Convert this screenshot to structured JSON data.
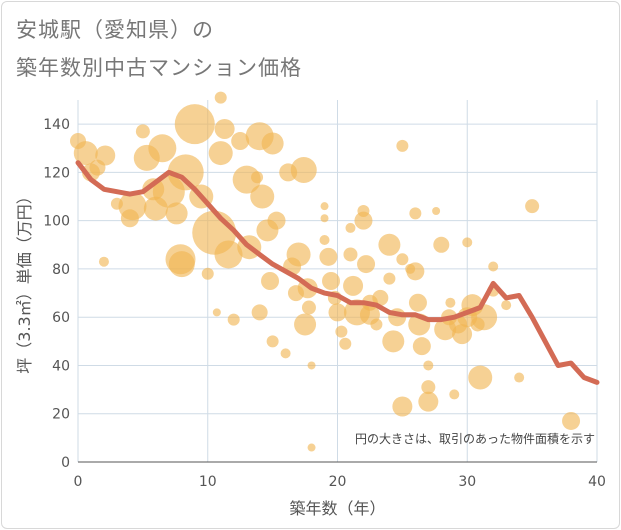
{
  "title_line1": "安城駅（愛知県）の",
  "title_line2": "築年数別中古マンション価格",
  "chart_data": {
    "type": "scatter",
    "xlabel": "築年数（年）",
    "ylabel": "坪（3.3㎡）単価（万円）",
    "xlim": [
      0,
      40
    ],
    "ylim": [
      0,
      150
    ],
    "xticks": [
      0,
      10,
      20,
      30,
      40
    ],
    "yticks": [
      0,
      20,
      40,
      60,
      80,
      100,
      120,
      140
    ],
    "grid": true,
    "annotation": "円の大きさは、取引のあった物件面積を示す",
    "colors": {
      "bubble": "#f0b552",
      "line": "#d36b55",
      "grid": "#cfdbe6"
    },
    "bubbles": [
      {
        "x": 0,
        "y": 133,
        "s": 8
      },
      {
        "x": 0.6,
        "y": 128,
        "s": 12
      },
      {
        "x": 1,
        "y": 120,
        "s": 9
      },
      {
        "x": 1.5,
        "y": 122,
        "s": 8
      },
      {
        "x": 2,
        "y": 83,
        "s": 5
      },
      {
        "x": 2.1,
        "y": 127,
        "s": 10
      },
      {
        "x": 3,
        "y": 107,
        "s": 6
      },
      {
        "x": 4,
        "y": 101,
        "s": 9
      },
      {
        "x": 4.2,
        "y": 106,
        "s": 14
      },
      {
        "x": 5,
        "y": 137,
        "s": 7
      },
      {
        "x": 5.3,
        "y": 126,
        "s": 13
      },
      {
        "x": 5.8,
        "y": 113,
        "s": 11
      },
      {
        "x": 6,
        "y": 105,
        "s": 12
      },
      {
        "x": 6.5,
        "y": 130,
        "s": 14
      },
      {
        "x": 7,
        "y": 112,
        "s": 16
      },
      {
        "x": 7.6,
        "y": 103,
        "s": 11
      },
      {
        "x": 7.9,
        "y": 84,
        "s": 15
      },
      {
        "x": 8,
        "y": 82,
        "s": 13
      },
      {
        "x": 8.3,
        "y": 120,
        "s": 18
      },
      {
        "x": 9,
        "y": 140,
        "s": 20
      },
      {
        "x": 9.5,
        "y": 110,
        "s": 12
      },
      {
        "x": 10,
        "y": 78,
        "s": 6
      },
      {
        "x": 10.5,
        "y": 95,
        "s": 22
      },
      {
        "x": 10.7,
        "y": 62,
        "s": 4
      },
      {
        "x": 11,
        "y": 151,
        "s": 6
      },
      {
        "x": 11,
        "y": 128,
        "s": 12
      },
      {
        "x": 11.3,
        "y": 138,
        "s": 10
      },
      {
        "x": 11.6,
        "y": 86,
        "s": 14
      },
      {
        "x": 12,
        "y": 59,
        "s": 6
      },
      {
        "x": 12.5,
        "y": 133,
        "s": 9
      },
      {
        "x": 13,
        "y": 117,
        "s": 14
      },
      {
        "x": 13.2,
        "y": 89,
        "s": 12
      },
      {
        "x": 13.8,
        "y": 118,
        "s": 6
      },
      {
        "x": 14,
        "y": 135,
        "s": 14
      },
      {
        "x": 14.2,
        "y": 110,
        "s": 12
      },
      {
        "x": 14.6,
        "y": 96,
        "s": 11
      },
      {
        "x": 14.8,
        "y": 75,
        "s": 9
      },
      {
        "x": 14,
        "y": 62,
        "s": 8
      },
      {
        "x": 15,
        "y": 50,
        "s": 6
      },
      {
        "x": 15,
        "y": 132,
        "s": 11
      },
      {
        "x": 15.3,
        "y": 100,
        "s": 9
      },
      {
        "x": 16,
        "y": 45,
        "s": 5
      },
      {
        "x": 16.2,
        "y": 120,
        "s": 9
      },
      {
        "x": 16.5,
        "y": 81,
        "s": 9
      },
      {
        "x": 16.8,
        "y": 70,
        "s": 8
      },
      {
        "x": 17,
        "y": 86,
        "s": 12
      },
      {
        "x": 17.4,
        "y": 121,
        "s": 13
      },
      {
        "x": 17.5,
        "y": 57,
        "s": 11
      },
      {
        "x": 17.7,
        "y": 72,
        "s": 10
      },
      {
        "x": 17.8,
        "y": 64,
        "s": 7
      },
      {
        "x": 18,
        "y": 40,
        "s": 4
      },
      {
        "x": 18,
        "y": 6,
        "s": 4
      },
      {
        "x": 19,
        "y": 106,
        "s": 4
      },
      {
        "x": 19,
        "y": 101,
        "s": 4
      },
      {
        "x": 19,
        "y": 92,
        "s": 5
      },
      {
        "x": 19.3,
        "y": 85,
        "s": 9
      },
      {
        "x": 19.5,
        "y": 75,
        "s": 9
      },
      {
        "x": 19.8,
        "y": 68,
        "s": 7
      },
      {
        "x": 20,
        "y": 62,
        "s": 9
      },
      {
        "x": 20.3,
        "y": 54,
        "s": 6
      },
      {
        "x": 20.6,
        "y": 49,
        "s": 6
      },
      {
        "x": 21,
        "y": 97,
        "s": 5
      },
      {
        "x": 21,
        "y": 86,
        "s": 7
      },
      {
        "x": 21.2,
        "y": 73,
        "s": 10
      },
      {
        "x": 21.5,
        "y": 62,
        "s": 13
      },
      {
        "x": 22,
        "y": 104,
        "s": 6
      },
      {
        "x": 22,
        "y": 100,
        "s": 9
      },
      {
        "x": 22.2,
        "y": 82,
        "s": 9
      },
      {
        "x": 22.5,
        "y": 66,
        "s": 8
      },
      {
        "x": 22.5,
        "y": 61,
        "s": 10
      },
      {
        "x": 23,
        "y": 57,
        "s": 6
      },
      {
        "x": 23.3,
        "y": 68,
        "s": 8
      },
      {
        "x": 24,
        "y": 90,
        "s": 11
      },
      {
        "x": 24,
        "y": 76,
        "s": 6
      },
      {
        "x": 24.3,
        "y": 50,
        "s": 11
      },
      {
        "x": 24.6,
        "y": 60,
        "s": 9
      },
      {
        "x": 25,
        "y": 131,
        "s": 6
      },
      {
        "x": 25,
        "y": 84,
        "s": 6
      },
      {
        "x": 25,
        "y": 23,
        "s": 10
      },
      {
        "x": 25.6,
        "y": 80,
        "s": 5
      },
      {
        "x": 26,
        "y": 103,
        "s": 6
      },
      {
        "x": 26,
        "y": 79,
        "s": 9
      },
      {
        "x": 26.2,
        "y": 66,
        "s": 9
      },
      {
        "x": 26.3,
        "y": 57,
        "s": 11
      },
      {
        "x": 26.5,
        "y": 48,
        "s": 9
      },
      {
        "x": 27,
        "y": 40,
        "s": 5
      },
      {
        "x": 27,
        "y": 31,
        "s": 7
      },
      {
        "x": 27,
        "y": 25,
        "s": 10
      },
      {
        "x": 27.6,
        "y": 104,
        "s": 4
      },
      {
        "x": 28,
        "y": 90,
        "s": 8
      },
      {
        "x": 28.3,
        "y": 55,
        "s": 11
      },
      {
        "x": 28.6,
        "y": 60,
        "s": 8
      },
      {
        "x": 28.7,
        "y": 66,
        "s": 5
      },
      {
        "x": 29,
        "y": 28,
        "s": 5
      },
      {
        "x": 29.3,
        "y": 57,
        "s": 9
      },
      {
        "x": 29.6,
        "y": 53,
        "s": 10
      },
      {
        "x": 30,
        "y": 91,
        "s": 5
      },
      {
        "x": 30,
        "y": 60,
        "s": 10
      },
      {
        "x": 30.4,
        "y": 65,
        "s": 11
      },
      {
        "x": 30.8,
        "y": 57,
        "s": 7
      },
      {
        "x": 31,
        "y": 35,
        "s": 12
      },
      {
        "x": 31.3,
        "y": 60,
        "s": 13
      },
      {
        "x": 32,
        "y": 81,
        "s": 5
      },
      {
        "x": 32,
        "y": 71,
        "s": 6
      },
      {
        "x": 33,
        "y": 65,
        "s": 5
      },
      {
        "x": 34,
        "y": 35,
        "s": 5
      },
      {
        "x": 35,
        "y": 106,
        "s": 7
      },
      {
        "x": 38,
        "y": 17,
        "s": 9
      }
    ],
    "trend": {
      "x": [
        0,
        1,
        2,
        3,
        4,
        5,
        6,
        7,
        8,
        9,
        10,
        11,
        12,
        13,
        14,
        15,
        16,
        17,
        18,
        19,
        20,
        21,
        22,
        23,
        24,
        25,
        26,
        27,
        28,
        29,
        30,
        31,
        32,
        33,
        34,
        35,
        36,
        37,
        38,
        39,
        40
      ],
      "y": [
        124,
        117,
        113,
        112,
        111,
        112,
        116,
        120,
        118,
        113,
        107,
        101,
        96,
        90,
        86,
        82,
        79,
        76,
        72,
        70,
        69,
        66,
        66,
        65,
        62,
        61,
        61,
        59,
        59,
        60,
        62,
        64,
        74,
        68,
        69,
        60,
        50,
        40,
        41,
        35,
        33
      ]
    }
  }
}
